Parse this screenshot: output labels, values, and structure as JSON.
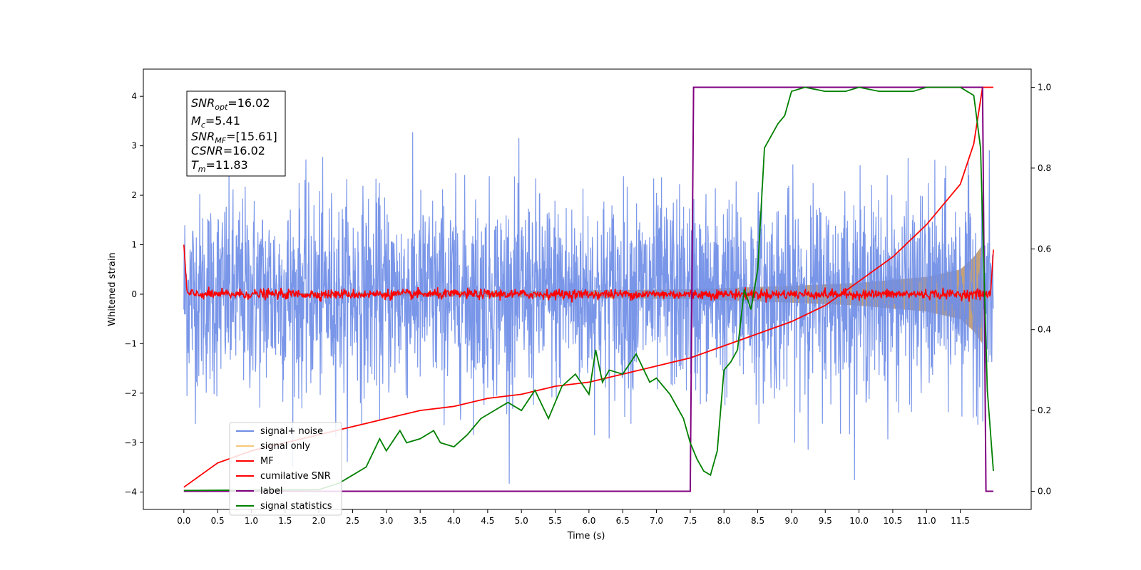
{
  "chart_data": {
    "type": "line",
    "xlabel": "Time (s)",
    "ylabel": "Whitened strain",
    "xlim": [
      -0.6,
      12.55
    ],
    "ylim": [
      -4.35,
      4.55
    ],
    "y2lim": [
      -0.045,
      1.045
    ],
    "xticks": [
      "0.0",
      "0.5",
      "1.0",
      "1.5",
      "2.0",
      "2.5",
      "3.0",
      "3.5",
      "4.0",
      "4.5",
      "5.0",
      "5.5",
      "6.0",
      "6.5",
      "7.0",
      "7.5",
      "8.0",
      "8.5",
      "9.0",
      "9.5",
      "10.0",
      "10.5",
      "11.0",
      "11.5"
    ],
    "yticks": [
      "4",
      "3",
      "2",
      "1",
      "0",
      "−1",
      "−2",
      "−3",
      "−4"
    ],
    "y2ticks": [
      "1.0",
      "0.8",
      "0.6",
      "0.4",
      "0.2",
      "0.0"
    ],
    "grid": false,
    "legend_placement": "lower-left",
    "colors": {
      "signal_noise": "#6f8de6",
      "signal_only": "#f5c97a",
      "mf": "#ff0000",
      "cumulative_snr": "#ff0000",
      "label": "#800080",
      "signal_statistics": "#008000"
    },
    "annotation": {
      "snr_opt": {
        "base": "SNR",
        "sub": "opt",
        "value": "=16.02"
      },
      "mc": {
        "base": "M",
        "sub": "c",
        "value": "=5.41"
      },
      "snr_mf": {
        "base": "SNR",
        "sub": "MF",
        "value": "=[15.61]"
      },
      "csnr": {
        "base": "CSNR",
        "value": "=16.02"
      },
      "tm": {
        "base": "T",
        "sub": "m",
        "value": "=11.83"
      }
    },
    "series": [
      {
        "name": "signal+ noise",
        "axis": "left",
        "t_range": [
          0.0,
          11.99
        ],
        "amplitude_sd": 1.0,
        "peak_max": 4.17,
        "peak_min": -3.83
      },
      {
        "name": "signal only",
        "axis": "left",
        "t_range": [
          0.0,
          11.83
        ],
        "envelope": [
          [
            0.0,
            0.0
          ],
          [
            7.5,
            0.1
          ],
          [
            9.0,
            0.17
          ],
          [
            10.0,
            0.23
          ],
          [
            11.0,
            0.35
          ],
          [
            11.5,
            0.5
          ],
          [
            11.7,
            0.75
          ],
          [
            11.83,
            1.0
          ]
        ]
      },
      {
        "name": "MF",
        "axis": "left",
        "t_range": [
          0.0,
          11.99
        ],
        "start_value": 1.0,
        "noise_sd": 0.05,
        "end_value": 0.9
      },
      {
        "name": "cumilative SNR",
        "axis": "right",
        "x": [
          0.0,
          0.5,
          1.0,
          1.5,
          2.0,
          2.5,
          3.0,
          3.5,
          4.0,
          4.5,
          5.0,
          5.5,
          6.0,
          6.5,
          7.0,
          7.5,
          8.0,
          8.5,
          9.0,
          9.5,
          10.0,
          10.5,
          11.0,
          11.5,
          11.7,
          11.83,
          11.99
        ],
        "values": [
          0.01,
          0.07,
          0.1,
          0.12,
          0.14,
          0.16,
          0.18,
          0.2,
          0.21,
          0.23,
          0.24,
          0.26,
          0.27,
          0.29,
          0.31,
          0.33,
          0.36,
          0.39,
          0.42,
          0.46,
          0.52,
          0.58,
          0.66,
          0.76,
          0.86,
          1.0,
          1.0
        ]
      },
      {
        "name": "label",
        "axis": "right",
        "x": [
          0.0,
          7.5,
          7.55,
          11.83,
          11.88,
          11.99
        ],
        "values": [
          0.0,
          0.0,
          1.0,
          1.0,
          0.0,
          0.0
        ]
      },
      {
        "name": "signal statistics",
        "axis": "right",
        "x": [
          0.0,
          1.0,
          2.0,
          2.3,
          2.5,
          2.7,
          2.9,
          3.0,
          3.2,
          3.3,
          3.5,
          3.7,
          3.8,
          4.0,
          4.2,
          4.4,
          4.6,
          4.8,
          5.0,
          5.2,
          5.4,
          5.6,
          5.8,
          6.0,
          6.1,
          6.2,
          6.3,
          6.5,
          6.7,
          6.9,
          7.0,
          7.2,
          7.4,
          7.5,
          7.6,
          7.7,
          7.8,
          7.9,
          8.0,
          8.1,
          8.2,
          8.3,
          8.4,
          8.5,
          8.6,
          8.7,
          8.8,
          8.9,
          9.0,
          9.2,
          9.5,
          9.8,
          10.0,
          10.3,
          10.5,
          10.8,
          11.0,
          11.3,
          11.5,
          11.7,
          11.8,
          11.9,
          11.99
        ],
        "values": [
          0.002,
          0.003,
          0.004,
          0.02,
          0.04,
          0.06,
          0.13,
          0.1,
          0.15,
          0.12,
          0.13,
          0.15,
          0.12,
          0.11,
          0.14,
          0.18,
          0.2,
          0.22,
          0.2,
          0.25,
          0.18,
          0.26,
          0.29,
          0.24,
          0.35,
          0.27,
          0.3,
          0.29,
          0.34,
          0.27,
          0.28,
          0.24,
          0.18,
          0.12,
          0.08,
          0.05,
          0.04,
          0.1,
          0.3,
          0.32,
          0.35,
          0.5,
          0.45,
          0.55,
          0.85,
          0.88,
          0.91,
          0.93,
          0.99,
          1.0,
          0.99,
          0.99,
          1.0,
          0.99,
          0.99,
          0.99,
          1.0,
          1.0,
          1.0,
          0.98,
          0.85,
          0.25,
          0.05
        ]
      }
    ]
  }
}
